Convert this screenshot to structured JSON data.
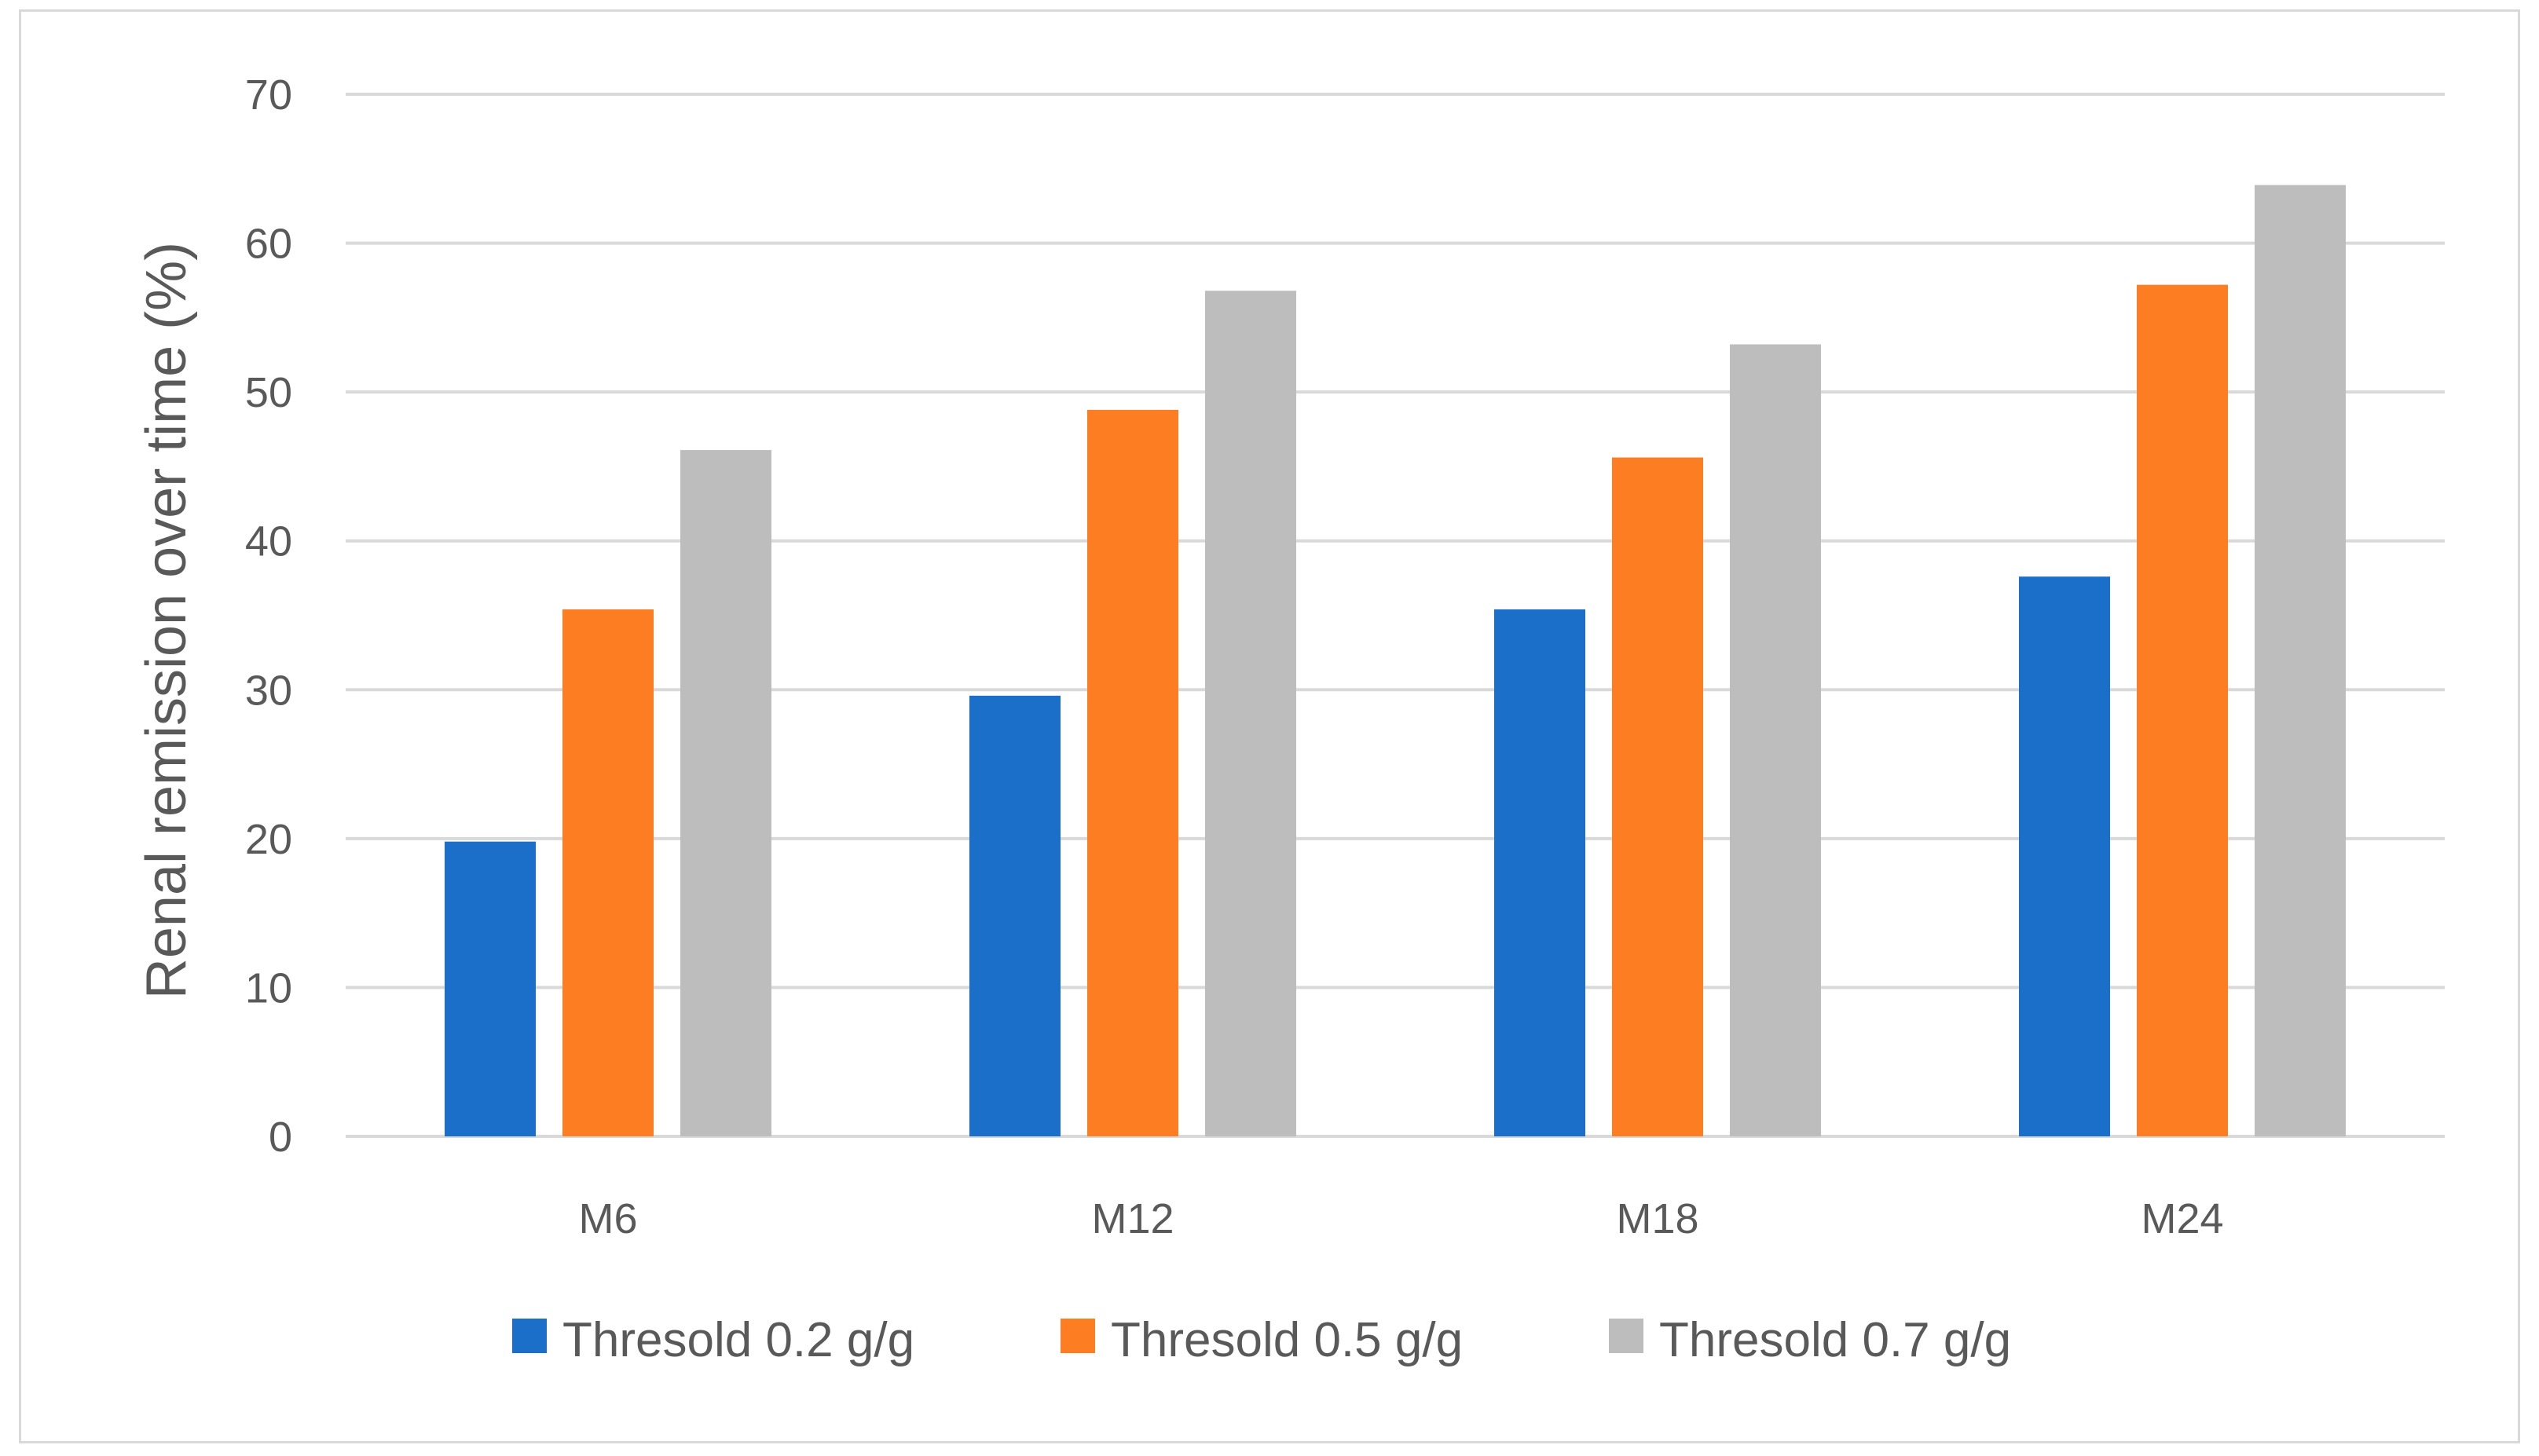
{
  "chart_data": {
    "type": "bar",
    "title": "",
    "xlabel": "",
    "ylabel": "Renal remission over time (%)",
    "ylim": [
      0,
      70
    ],
    "yticks": [
      0,
      10,
      20,
      30,
      40,
      50,
      60,
      70
    ],
    "grid": true,
    "legend_position": "bottom",
    "categories": [
      "M6",
      "M12",
      "M18",
      "M24"
    ],
    "series": [
      {
        "name": "Thresold 0.2 g/g",
        "color": "#1b6fc8",
        "values": [
          19.8,
          29.6,
          35.4,
          37.6
        ]
      },
      {
        "name": "Thresold 0.5 g/g",
        "color": "#fd7e22",
        "values": [
          35.4,
          48.8,
          45.6,
          57.2
        ]
      },
      {
        "name": "Thresold 0.7 g/g",
        "color": "#bdbdbd",
        "values": [
          46.1,
          56.8,
          53.2,
          63.9
        ]
      }
    ]
  }
}
